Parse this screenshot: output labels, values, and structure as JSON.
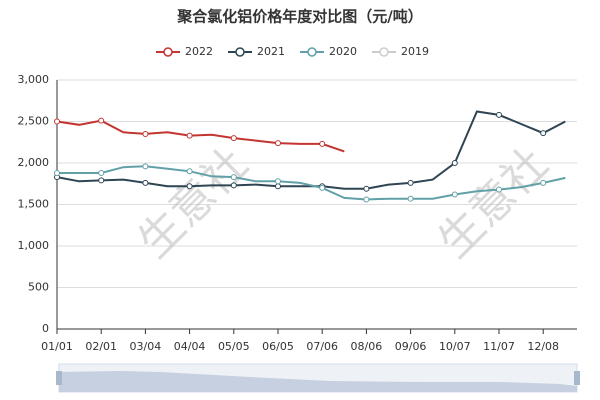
{
  "chart_data": {
    "type": "line",
    "title": "聚合氯化铝价格年度对比图（元/吨）",
    "watermark": "生意社",
    "categories": [
      "01/01",
      null,
      "02/01",
      null,
      "03/04",
      null,
      "04/04",
      null,
      "05/05",
      null,
      "06/05",
      null,
      "07/06",
      null,
      "08/06",
      null,
      "09/06",
      null,
      "10/07",
      null,
      "11/07",
      null,
      "12/08",
      null
    ],
    "ylim": [
      0,
      3000
    ],
    "yticks": [
      0,
      500,
      {
        "value": 1000,
        "label": "1,000"
      },
      {
        "value": 1500,
        "label": "1,500"
      },
      {
        "value": 2000,
        "label": "2,000"
      },
      {
        "value": 2500,
        "label": "2,500"
      },
      {
        "value": 3000,
        "label": "3,000"
      }
    ],
    "grid": true,
    "series": [
      {
        "name": "2022",
        "color": "#c23531",
        "values": [
          2500,
          2460,
          2510,
          2370,
          2350,
          2370,
          2330,
          2340,
          2300,
          2270,
          2240,
          2230,
          2230,
          2140,
          null,
          null,
          null,
          null,
          null,
          null,
          null,
          null,
          null,
          null
        ]
      },
      {
        "name": "2021",
        "color": "#2f4554",
        "values": [
          1830,
          1780,
          1790,
          1800,
          1760,
          1720,
          1720,
          1730,
          1730,
          1740,
          1720,
          1720,
          1720,
          1690,
          1690,
          1740,
          1760,
          1800,
          2000,
          2620,
          2580,
          2470,
          2360,
          2500
        ]
      },
      {
        "name": "2020",
        "color": "#61a0a8",
        "values": [
          1880,
          1880,
          1880,
          1950,
          1960,
          1930,
          1900,
          1840,
          1830,
          1780,
          1780,
          1760,
          1700,
          1580,
          1560,
          1570,
          1570,
          1570,
          1620,
          1660,
          1680,
          1710,
          1760,
          1820
        ]
      },
      {
        "name": "2019",
        "color": "#cccccc",
        "hidden": true,
        "values": [
          null,
          null,
          null,
          null,
          null,
          null,
          null,
          null,
          null,
          null,
          null,
          null,
          null,
          null,
          null,
          null,
          null,
          null,
          null,
          null,
          null,
          null,
          null,
          null
        ]
      }
    ]
  }
}
